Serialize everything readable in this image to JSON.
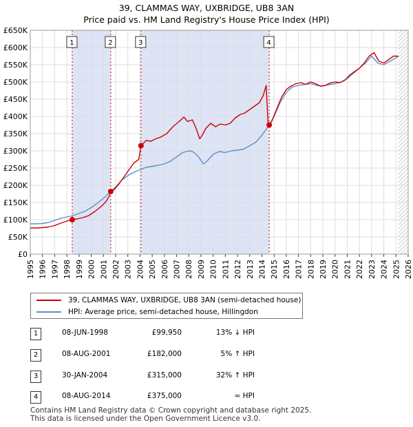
{
  "title_line1": "39, CLAMMAS WAY, UXBRIDGE, UB8 3AN",
  "title_line2": "Price paid vs. HM Land Registry's House Price Index (HPI)",
  "colors": {
    "property": "#cc0000",
    "hpi": "#5b8fc9",
    "shade": "#dde4f5",
    "hatch": "#999999"
  },
  "chart_data": {
    "type": "line",
    "x_range": [
      1995,
      2026
    ],
    "y_range": [
      0,
      650000
    ],
    "y_ticks": [
      0,
      50000,
      100000,
      150000,
      200000,
      250000,
      300000,
      350000,
      400000,
      450000,
      500000,
      550000,
      600000,
      650000
    ],
    "y_tick_labels": [
      "£0",
      "£50K",
      "£100K",
      "£150K",
      "£200K",
      "£250K",
      "£300K",
      "£350K",
      "£400K",
      "£450K",
      "£500K",
      "£550K",
      "£600K",
      "£650K"
    ],
    "x_tick_labels": [
      "1995",
      "1996",
      "1997",
      "1998",
      "1999",
      "2000",
      "2001",
      "2002",
      "2003",
      "2004",
      "2005",
      "2006",
      "2007",
      "2008",
      "2009",
      "2010",
      "2011",
      "2012",
      "2013",
      "2014",
      "2015",
      "2016",
      "2017",
      "2018",
      "2019",
      "2020",
      "2021",
      "2022",
      "2023",
      "2024",
      "2025",
      "2026"
    ],
    "series": [
      {
        "name": "39, CLAMMAS WAY, UXBRIDGE, UB8 3AN (semi-detached house)",
        "x": [
          1995.0,
          1995.5,
          1996.0,
          1996.5,
          1997.0,
          1997.5,
          1998.0,
          1998.44,
          1998.8,
          1999.3,
          1999.8,
          2000.3,
          2000.8,
          2001.2,
          2001.5,
          2001.6,
          2001.9,
          2002.3,
          2002.7,
          2003.1,
          2003.5,
          2003.9,
          2004.08,
          2004.5,
          2004.9,
          2005.3,
          2005.7,
          2006.2,
          2006.7,
          2007.2,
          2007.6,
          2007.9,
          2008.3,
          2008.6,
          2008.9,
          2009.1,
          2009.4,
          2009.8,
          2010.2,
          2010.6,
          2011.0,
          2011.4,
          2011.8,
          2012.2,
          2012.6,
          2013.0,
          2013.4,
          2013.8,
          2014.1,
          2014.35,
          2014.5,
          2014.6,
          2014.8,
          2015.2,
          2015.6,
          2016.0,
          2016.4,
          2016.8,
          2017.2,
          2017.6,
          2018.0,
          2018.4,
          2018.8,
          2019.2,
          2019.6,
          2020.0,
          2020.4,
          2020.8,
          2021.2,
          2021.6,
          2022.0,
          2022.4,
          2022.8,
          2023.2,
          2023.6,
          2024.0,
          2024.4,
          2024.8,
          2025.2
        ],
        "values": [
          76000,
          76000,
          77000,
          79000,
          83000,
          90000,
          96000,
          99950,
          102000,
          106000,
          112000,
          124000,
          138000,
          152000,
          170000,
          182000,
          188000,
          205000,
          225000,
          245000,
          265000,
          275000,
          315000,
          330000,
          328000,
          335000,
          340000,
          350000,
          370000,
          385000,
          398000,
          385000,
          390000,
          365000,
          335000,
          345000,
          365000,
          380000,
          370000,
          378000,
          375000,
          380000,
          395000,
          405000,
          410000,
          420000,
          430000,
          440000,
          460000,
          490000,
          385000,
          375000,
          385000,
          420000,
          455000,
          478000,
          488000,
          495000,
          498000,
          493000,
          500000,
          495000,
          488000,
          490000,
          497000,
          500000,
          498000,
          505000,
          520000,
          530000,
          540000,
          555000,
          575000,
          585000,
          560000,
          555000,
          565000,
          575000,
          575000
        ]
      },
      {
        "name": "HPI: Average price, semi-detached house, Hillingdon",
        "x": [
          1995.0,
          1995.5,
          1996.0,
          1996.5,
          1997.0,
          1997.5,
          1998.0,
          1998.5,
          1999.0,
          1999.5,
          2000.0,
          2000.5,
          2001.0,
          2001.5,
          2002.0,
          2002.5,
          2003.0,
          2003.5,
          2004.0,
          2004.5,
          2005.0,
          2005.5,
          2006.0,
          2006.5,
          2007.0,
          2007.5,
          2008.0,
          2008.3,
          2008.6,
          2008.9,
          2009.2,
          2009.5,
          2010.0,
          2010.5,
          2011.0,
          2011.5,
          2012.0,
          2012.5,
          2013.0,
          2013.5,
          2014.0,
          2014.3,
          2014.6,
          2015.0,
          2015.5,
          2016.0,
          2016.5,
          2017.0,
          2017.5,
          2018.0,
          2018.5,
          2019.0,
          2019.5,
          2020.0,
          2020.5,
          2021.0,
          2021.5,
          2022.0,
          2022.5,
          2023.0,
          2023.5,
          2024.0,
          2024.5,
          2025.0,
          2025.2
        ],
        "values": [
          88000,
          88000,
          89000,
          92000,
          98000,
          104000,
          108000,
          112000,
          118000,
          125000,
          135000,
          148000,
          162000,
          178000,
          195000,
          215000,
          228000,
          238000,
          245000,
          252000,
          255000,
          258000,
          262000,
          270000,
          282000,
          295000,
          300000,
          298000,
          290000,
          278000,
          262000,
          270000,
          290000,
          298000,
          295000,
          300000,
          302000,
          305000,
          315000,
          325000,
          345000,
          360000,
          375000,
          400000,
          440000,
          470000,
          485000,
          490000,
          493000,
          495000,
          490000,
          488000,
          492000,
          495000,
          500000,
          510000,
          525000,
          540000,
          555000,
          575000,
          555000,
          550000,
          560000,
          570000,
          575000
        ]
      }
    ],
    "transactions": [
      {
        "num": "1",
        "year": 1998.44,
        "price": 99950,
        "date": "08-JUN-1998",
        "price_label": "£99,950",
        "hpi_label": "13% ↓ HPI"
      },
      {
        "num": "2",
        "year": 2001.6,
        "price": 182000,
        "date": "08-AUG-2001",
        "price_label": "£182,000",
        "hpi_label": "5% ↑ HPI"
      },
      {
        "num": "3",
        "year": 2004.08,
        "price": 315000,
        "date": "30-JAN-2004",
        "price_label": "£315,000",
        "hpi_label": "32% ↑ HPI"
      },
      {
        "num": "4",
        "year": 2014.6,
        "price": 375000,
        "date": "08-AUG-2014",
        "price_label": "£375,000",
        "hpi_label": "≈ HPI"
      }
    ],
    "shaded_periods": [
      [
        1998.44,
        2001.6
      ],
      [
        2004.08,
        2014.6
      ]
    ],
    "hatch_start": 2025.2
  },
  "legend": {
    "property": "39, CLAMMAS WAY, UXBRIDGE, UB8 3AN (semi-detached house)",
    "hpi": "HPI: Average price, semi-detached house, Hillingdon"
  },
  "footer": {
    "line1": "Contains HM Land Registry data © Crown copyright and database right 2025.",
    "line2": "This data is licensed under the Open Government Licence v3.0."
  }
}
